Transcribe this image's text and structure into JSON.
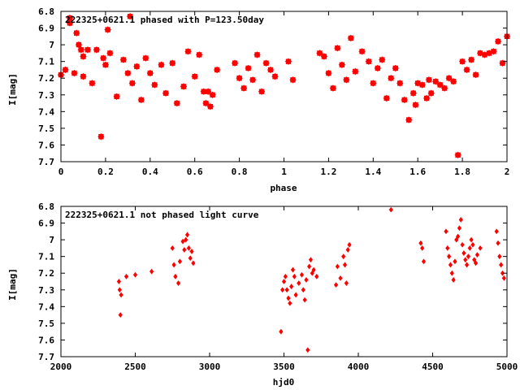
{
  "chart_data": [
    {
      "type": "scatter",
      "title": "222325+0621.1 phased with P=123.50day",
      "xlabel": "phase",
      "ylabel": "I[mag]",
      "xlim": [
        0,
        2
      ],
      "ylim": [
        7.7,
        6.8
      ],
      "y_inverted": true,
      "grid": false,
      "marker": "star",
      "color": "#ff0000",
      "xticks": [
        "0",
        "0.2",
        "0.4",
        "0.6",
        "0.8",
        "1",
        "1.2",
        "1.4",
        "1.6",
        "1.8",
        "2"
      ],
      "xtick_values": [
        0,
        0.2,
        0.4,
        0.6,
        0.8,
        1,
        1.2,
        1.4,
        1.6,
        1.8,
        2
      ],
      "yticks": [
        "6.8",
        "6.9",
        "7",
        "7.1",
        "7.2",
        "7.3",
        "7.4",
        "7.5",
        "7.6",
        "7.7"
      ],
      "ytick_values": [
        6.8,
        6.9,
        7.0,
        7.1,
        7.2,
        7.3,
        7.4,
        7.5,
        7.6,
        7.7
      ],
      "series": [
        {
          "x": [
            0.0,
            0.02,
            0.04,
            0.04,
            0.06,
            0.07,
            0.08,
            0.09,
            0.1,
            0.1,
            0.12,
            0.14,
            0.16,
            0.18,
            0.19,
            0.2,
            0.21,
            0.22,
            0.25,
            0.28,
            0.3,
            0.31,
            0.32,
            0.34,
            0.36,
            0.38,
            0.4,
            0.42,
            0.45,
            0.47,
            0.5,
            0.52,
            0.55,
            0.57,
            0.6,
            0.62,
            0.64,
            0.65,
            0.66,
            0.67,
            0.68,
            0.7,
            0.78,
            0.8,
            0.82,
            0.84,
            0.86,
            0.88,
            0.9,
            0.92,
            0.94,
            0.96,
            1.02,
            1.04,
            1.16,
            1.18,
            1.2,
            1.22,
            1.24,
            1.26,
            1.28,
            1.3,
            1.32,
            1.35,
            1.38,
            1.4,
            1.42,
            1.44,
            1.46,
            1.48,
            1.5,
            1.52,
            1.54,
            1.56,
            1.58,
            1.59,
            1.6,
            1.62,
            1.64,
            1.65,
            1.66,
            1.68,
            1.7,
            1.72,
            1.74,
            1.76,
            1.78,
            1.8,
            1.82,
            1.84,
            1.86,
            1.88,
            1.9,
            1.92,
            1.94,
            1.96,
            1.98,
            2.0
          ],
          "y": [
            7.18,
            7.15,
            6.87,
            6.84,
            7.17,
            6.93,
            7.0,
            7.03,
            7.07,
            7.19,
            7.03,
            7.23,
            7.03,
            7.55,
            7.08,
            7.12,
            6.91,
            7.05,
            7.31,
            7.09,
            7.17,
            6.83,
            7.23,
            7.13,
            7.33,
            7.08,
            7.17,
            7.24,
            7.12,
            7.29,
            7.11,
            7.35,
            7.25,
            7.04,
            7.19,
            7.06,
            7.28,
            7.35,
            7.28,
            7.37,
            7.3,
            7.15,
            7.11,
            7.2,
            7.26,
            7.14,
            7.21,
            7.06,
            7.28,
            7.11,
            7.15,
            7.19,
            7.1,
            7.21,
            7.05,
            7.07,
            7.17,
            7.26,
            7.02,
            7.12,
            7.21,
            6.96,
            7.16,
            7.04,
            7.1,
            7.23,
            7.14,
            7.09,
            7.32,
            7.2,
            7.14,
            7.23,
            7.33,
            7.45,
            7.29,
            7.36,
            7.23,
            7.24,
            7.32,
            7.21,
            7.29,
            7.22,
            7.24,
            7.26,
            7.2,
            7.22,
            7.66,
            7.1,
            7.15,
            7.09,
            7.18,
            7.05,
            7.06,
            7.05,
            7.04,
            6.98,
            7.11,
            6.95
          ]
        }
      ]
    },
    {
      "type": "scatter",
      "title": "222325+0621.1 not phased light curve",
      "xlabel": "hjd0",
      "ylabel": "I[mag]",
      "xlim": [
        2000,
        5000
      ],
      "ylim": [
        7.7,
        6.8
      ],
      "y_inverted": true,
      "grid": false,
      "marker": "diamond",
      "color": "#ff0000",
      "xticks": [
        "2000",
        "2500",
        "3000",
        "3500",
        "4000",
        "4500",
        "5000"
      ],
      "xtick_values": [
        2000,
        2500,
        3000,
        3500,
        4000,
        4500,
        5000
      ],
      "yticks": [
        "6.8",
        "6.9",
        "7",
        "7.1",
        "7.2",
        "7.3",
        "7.4",
        "7.5",
        "7.6",
        "7.7"
      ],
      "ytick_values": [
        6.8,
        6.9,
        7.0,
        7.1,
        7.2,
        7.3,
        7.4,
        7.5,
        7.6,
        7.7
      ],
      "series": [
        {
          "x": [
            2390,
            2395,
            2400,
            2405,
            2440,
            2500,
            2610,
            2750,
            2760,
            2770,
            2790,
            2800,
            2820,
            2830,
            2840,
            2850,
            2860,
            2870,
            2880,
            2890,
            3480,
            3490,
            3500,
            3510,
            3520,
            3530,
            3540,
            3550,
            3560,
            3570,
            3580,
            3600,
            3620,
            3630,
            3640,
            3650,
            3660,
            3670,
            3680,
            3690,
            3700,
            3720,
            3850,
            3860,
            3880,
            3900,
            3910,
            3920,
            3930,
            3940,
            4220,
            4420,
            4430,
            4440,
            4590,
            4600,
            4610,
            4620,
            4630,
            4640,
            4650,
            4660,
            4670,
            4680,
            4690,
            4700,
            4710,
            4720,
            4730,
            4740,
            4750,
            4760,
            4770,
            4780,
            4790,
            4800,
            4820,
            4930,
            4940,
            4950,
            4960,
            4970,
            4980
          ],
          "y": [
            7.25,
            7.3,
            7.45,
            7.33,
            7.22,
            7.21,
            7.19,
            7.05,
            7.15,
            7.22,
            7.26,
            7.13,
            7.01,
            7.06,
            7.0,
            6.97,
            7.05,
            7.11,
            7.07,
            7.14,
            7.55,
            7.3,
            7.25,
            7.22,
            7.3,
            7.35,
            7.38,
            7.28,
            7.18,
            7.22,
            7.33,
            7.26,
            7.21,
            7.3,
            7.36,
            7.24,
            7.66,
            7.16,
            7.12,
            7.2,
            7.18,
            7.22,
            7.27,
            7.16,
            7.23,
            7.1,
            7.15,
            7.26,
            7.06,
            7.03,
            6.82,
            7.02,
            7.05,
            7.13,
            6.95,
            7.05,
            7.1,
            7.15,
            7.2,
            7.24,
            7.13,
            7.0,
            6.98,
            6.93,
            6.88,
            7.03,
            7.08,
            7.12,
            7.15,
            7.1,
            7.05,
            7.0,
            7.03,
            7.12,
            7.14,
            7.09,
            7.05,
            6.95,
            7.02,
            7.1,
            7.15,
            7.2,
            7.23
          ]
        }
      ]
    }
  ]
}
